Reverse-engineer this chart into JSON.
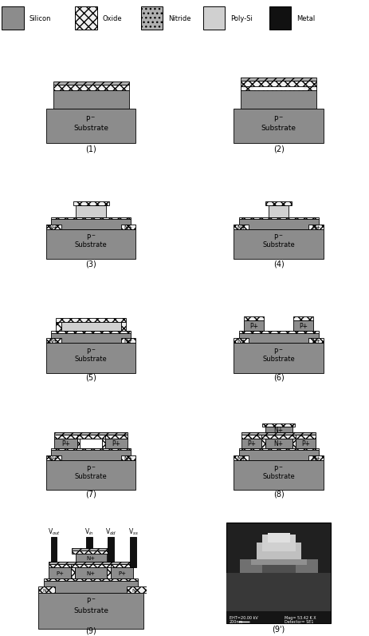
{
  "colors": {
    "silicon": "#8c8c8c",
    "oxide": "#f0f0f0",
    "nitride": "#b0b0b0",
    "polysi": "#d0d0d0",
    "metal": "#111111",
    "white": "#ffffff",
    "black": "#000000",
    "bg": "#ffffff",
    "sem_bg": "#404040"
  },
  "legend": {
    "items": [
      "Silicon",
      "Oxide",
      "Nitride",
      "Poly-Si",
      "Metal"
    ],
    "colors": [
      "#8c8c8c",
      "#f0f0f0",
      "#b0b0b0",
      "#d0d0d0",
      "#111111"
    ],
    "hatches": [
      "",
      "xxx",
      "...",
      "",
      ""
    ]
  },
  "fig_w": 4.74,
  "fig_h": 7.98,
  "dpi": 100
}
